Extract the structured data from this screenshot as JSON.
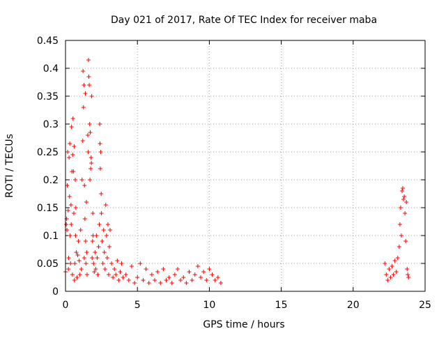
{
  "chart_data": {
    "type": "scatter",
    "title": "Day 021 of 2017, Rate Of TEC Index for receiver maba",
    "xlabel": "GPS time / hours",
    "ylabel": "ROTI / TECUs",
    "xlim": [
      0,
      25
    ],
    "ylim": [
      0,
      0.45
    ],
    "grid": true,
    "x_ticks": [
      0,
      5,
      10,
      15,
      20,
      25
    ],
    "x_tick_labels": [
      "0",
      "5",
      "10",
      "15",
      "20",
      "25"
    ],
    "y_ticks": [
      0,
      0.05,
      0.1,
      0.15,
      0.2,
      0.25,
      0.3,
      0.35,
      0.4,
      0.45
    ],
    "y_tick_labels": [
      "0",
      "0.05",
      "0.1",
      "0.15",
      "0.2",
      "0.25",
      "0.3",
      "0.35",
      "0.4",
      "0.45"
    ],
    "marker": "+",
    "marker_color": "#ff0000",
    "series": [
      {
        "name": "ROTI",
        "points": [
          [
            0.0,
            0.035
          ],
          [
            0.05,
            0.12
          ],
          [
            0.08,
            0.13
          ],
          [
            0.1,
            0.11
          ],
          [
            0.12,
            0.19
          ],
          [
            0.15,
            0.25
          ],
          [
            0.18,
            0.145
          ],
          [
            0.2,
            0.04
          ],
          [
            0.22,
            0.06
          ],
          [
            0.25,
            0.24
          ],
          [
            0.28,
            0.17
          ],
          [
            0.3,
            0.265
          ],
          [
            0.32,
            0.1
          ],
          [
            0.35,
            0.05
          ],
          [
            0.38,
            0.155
          ],
          [
            0.4,
            0.12
          ],
          [
            0.42,
            0.295
          ],
          [
            0.45,
            0.215
          ],
          [
            0.48,
            0.03
          ],
          [
            0.5,
            0.245
          ],
          [
            0.52,
            0.31
          ],
          [
            0.55,
            0.215
          ],
          [
            0.58,
            0.14
          ],
          [
            0.6,
            0.26
          ],
          [
            0.62,
            0.02
          ],
          [
            0.65,
            0.05
          ],
          [
            0.68,
            0.2
          ],
          [
            0.7,
            0.1
          ],
          [
            0.72,
            0.15
          ],
          [
            0.75,
            0.07
          ],
          [
            0.8,
            0.025
          ],
          [
            0.85,
            0.065
          ],
          [
            0.9,
            0.09
          ],
          [
            0.95,
            0.055
          ],
          [
            1.0,
            0.03
          ],
          [
            1.05,
            0.11
          ],
          [
            1.1,
            0.04
          ],
          [
            1.15,
            0.2
          ],
          [
            1.2,
            0.27
          ],
          [
            1.22,
            0.395
          ],
          [
            1.25,
            0.33
          ],
          [
            1.28,
            0.37
          ],
          [
            1.3,
            0.06
          ],
          [
            1.32,
            0.19
          ],
          [
            1.35,
            0.13
          ],
          [
            1.38,
            0.355
          ],
          [
            1.4,
            0.09
          ],
          [
            1.42,
            0.05
          ],
          [
            1.45,
            0.16
          ],
          [
            1.48,
            0.07
          ],
          [
            1.5,
            0.03
          ],
          [
            1.55,
            0.28
          ],
          [
            1.58,
            0.25
          ],
          [
            1.6,
            0.415
          ],
          [
            1.62,
            0.385
          ],
          [
            1.65,
            0.37
          ],
          [
            1.68,
            0.3
          ],
          [
            1.7,
            0.2
          ],
          [
            1.72,
            0.285
          ],
          [
            1.75,
            0.22
          ],
          [
            1.78,
            0.24
          ],
          [
            1.8,
            0.23
          ],
          [
            1.82,
            0.35
          ],
          [
            1.85,
            0.06
          ],
          [
            1.88,
            0.09
          ],
          [
            1.9,
            0.14
          ],
          [
            1.92,
            0.1
          ],
          [
            1.95,
            0.05
          ],
          [
            2.0,
            0.035
          ],
          [
            2.05,
            0.07
          ],
          [
            2.1,
            0.04
          ],
          [
            2.15,
            0.1
          ],
          [
            2.2,
            0.06
          ],
          [
            2.25,
            0.03
          ],
          [
            2.3,
            0.08
          ],
          [
            2.35,
            0.12
          ],
          [
            2.38,
            0.3
          ],
          [
            2.4,
            0.265
          ],
          [
            2.42,
            0.22
          ],
          [
            2.45,
            0.25
          ],
          [
            2.48,
            0.175
          ],
          [
            2.5,
            0.14
          ],
          [
            2.55,
            0.09
          ],
          [
            2.6,
            0.05
          ],
          [
            2.65,
            0.11
          ],
          [
            2.7,
            0.07
          ],
          [
            2.75,
            0.04
          ],
          [
            2.8,
            0.155
          ],
          [
            2.85,
            0.1
          ],
          [
            2.9,
            0.06
          ],
          [
            2.95,
            0.12
          ],
          [
            3.0,
            0.03
          ],
          [
            3.05,
            0.08
          ],
          [
            3.1,
            0.11
          ],
          [
            3.2,
            0.05
          ],
          [
            3.3,
            0.025
          ],
          [
            3.4,
            0.04
          ],
          [
            3.5,
            0.03
          ],
          [
            3.6,
            0.055
          ],
          [
            3.7,
            0.02
          ],
          [
            3.8,
            0.035
          ],
          [
            3.9,
            0.05
          ],
          [
            4.0,
            0.025
          ],
          [
            4.2,
            0.03
          ],
          [
            4.4,
            0.02
          ],
          [
            4.6,
            0.045
          ],
          [
            4.8,
            0.015
          ],
          [
            5.0,
            0.025
          ],
          [
            5.2,
            0.05
          ],
          [
            5.4,
            0.02
          ],
          [
            5.6,
            0.04
          ],
          [
            5.8,
            0.015
          ],
          [
            6.0,
            0.03
          ],
          [
            6.2,
            0.02
          ],
          [
            6.4,
            0.035
          ],
          [
            6.6,
            0.015
          ],
          [
            6.8,
            0.04
          ],
          [
            7.0,
            0.02
          ],
          [
            7.2,
            0.025
          ],
          [
            7.4,
            0.015
          ],
          [
            7.6,
            0.03
          ],
          [
            7.8,
            0.04
          ],
          [
            8.0,
            0.02
          ],
          [
            8.2,
            0.025
          ],
          [
            8.4,
            0.015
          ],
          [
            8.6,
            0.035
          ],
          [
            8.8,
            0.02
          ],
          [
            9.0,
            0.03
          ],
          [
            9.2,
            0.045
          ],
          [
            9.4,
            0.025
          ],
          [
            9.6,
            0.035
          ],
          [
            9.8,
            0.02
          ],
          [
            10.0,
            0.04
          ],
          [
            10.2,
            0.03
          ],
          [
            10.4,
            0.02
          ],
          [
            10.6,
            0.025
          ],
          [
            10.8,
            0.015
          ],
          [
            22.2,
            0.05
          ],
          [
            22.3,
            0.03
          ],
          [
            22.4,
            0.02
          ],
          [
            22.5,
            0.04
          ],
          [
            22.6,
            0.025
          ],
          [
            22.7,
            0.045
          ],
          [
            22.8,
            0.03
          ],
          [
            22.9,
            0.055
          ],
          [
            23.0,
            0.035
          ],
          [
            23.1,
            0.06
          ],
          [
            23.2,
            0.08
          ],
          [
            23.25,
            0.12
          ],
          [
            23.3,
            0.15
          ],
          [
            23.35,
            0.1
          ],
          [
            23.4,
            0.18
          ],
          [
            23.45,
            0.185
          ],
          [
            23.5,
            0.165
          ],
          [
            23.55,
            0.17
          ],
          [
            23.6,
            0.14
          ],
          [
            23.65,
            0.09
          ],
          [
            23.7,
            0.16
          ],
          [
            23.75,
            0.04
          ],
          [
            23.8,
            0.03
          ],
          [
            23.85,
            0.025
          ]
        ]
      }
    ]
  }
}
